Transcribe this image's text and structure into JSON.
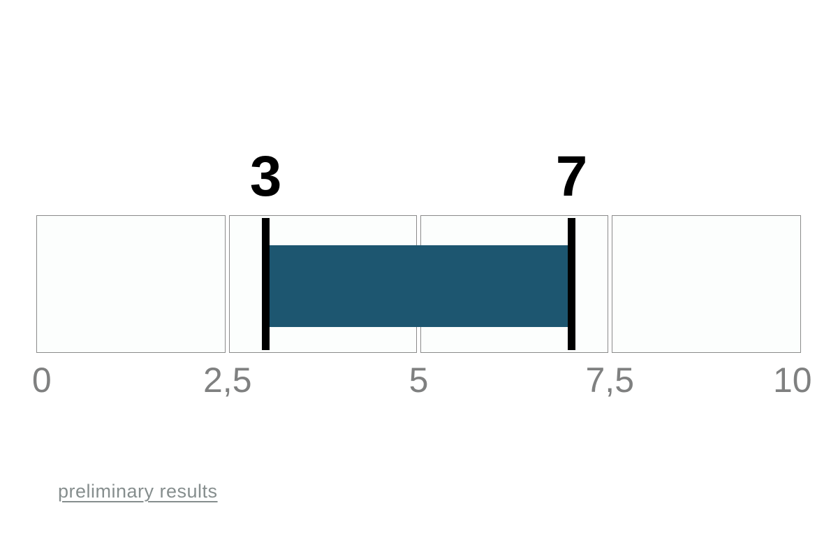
{
  "chart_data": {
    "type": "bar",
    "subtype": "horizontal-range-indicator",
    "title": "",
    "x_axis": {
      "min": 0,
      "max": 10,
      "grid": false,
      "ticks": [
        {
          "value": 0,
          "label": "0"
        },
        {
          "value": 2.5,
          "label": "2,5"
        },
        {
          "value": 5,
          "label": "5"
        },
        {
          "value": 7.5,
          "label": "7,5"
        },
        {
          "value": 10,
          "label": "10"
        }
      ],
      "segments": [
        [
          0,
          2.5
        ],
        [
          2.5,
          5
        ],
        [
          5,
          7.5
        ],
        [
          7.5,
          10
        ]
      ]
    },
    "range": {
      "start": 3,
      "end": 7,
      "start_label": "3",
      "end_label": "7"
    },
    "colors": {
      "bar": "#1d5670",
      "marker": "#000000",
      "marker_label": "#000000",
      "cell_background": "#fcfefd",
      "cell_border": "#8a8a8a",
      "tick_label": "#7f8080",
      "link": "#868e8e",
      "page_background": "#ffffff"
    },
    "legend": null
  },
  "footer": {
    "link_label": "preliminary results"
  }
}
